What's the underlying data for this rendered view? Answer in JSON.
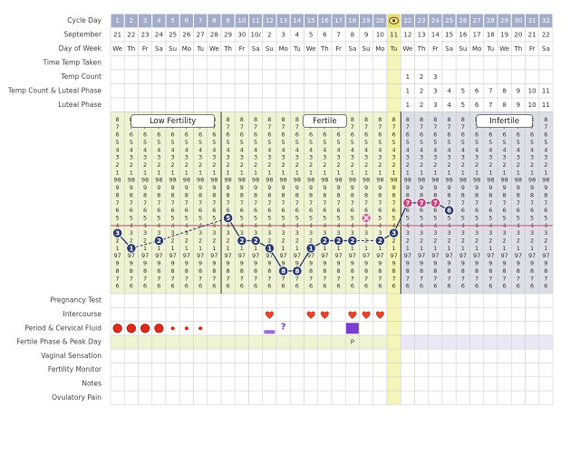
{
  "table": {
    "row_labels_top": [
      "Cycle Day",
      "September",
      "Day of Week",
      "Time Temp Taken",
      "Temp Count",
      "Temp Count & Luteal Phase",
      "Luteal Phase"
    ],
    "row_labels_bottom": [
      "Pregnancy Test",
      "Intercourse",
      "Period & Cervical Fluid",
      "Fertile Phase & Peak Day",
      "Vaginal Sensation",
      "Fertility Monitor",
      "Notes",
      "Ovulatory Pain"
    ],
    "dates": [
      21,
      22,
      23,
      24,
      25,
      26,
      27,
      28,
      29,
      30,
      "10/",
      2,
      3,
      4,
      5,
      6,
      7,
      8,
      9,
      10,
      11,
      12,
      13,
      14,
      15,
      16,
      17,
      18,
      19,
      20,
      21,
      22
    ],
    "weekdays": [
      "We",
      "Th",
      "Fr",
      "Sa",
      "Su",
      "Mo",
      "Tu",
      "We",
      "Th",
      "Fr",
      "Sa",
      "Su",
      "Mo",
      "Tu",
      "We",
      "Th",
      "Fr",
      "Sa",
      "Su",
      "Mo",
      "Tu",
      "We",
      "Th",
      "Fr",
      "Sa",
      "Su",
      "Mo",
      "Tu",
      "We",
      "Th",
      "Fr",
      "Sa"
    ],
    "temp_count": [
      null,
      null,
      null,
      null,
      null,
      null,
      null,
      null,
      null,
      null,
      null,
      null,
      null,
      null,
      null,
      null,
      null,
      null,
      null,
      null,
      null,
      1,
      2,
      3,
      null,
      null,
      null,
      null,
      null,
      null,
      null,
      null
    ],
    "temp_count_luteal": [
      null,
      null,
      null,
      null,
      null,
      null,
      null,
      null,
      null,
      null,
      null,
      null,
      null,
      null,
      null,
      null,
      null,
      null,
      null,
      null,
      null,
      1,
      2,
      3,
      4,
      5,
      6,
      7,
      8,
      9,
      10,
      11
    ],
    "luteal_phase": [
      null,
      null,
      null,
      null,
      null,
      null,
      null,
      null,
      null,
      null,
      null,
      null,
      null,
      null,
      null,
      null,
      null,
      null,
      null,
      null,
      null,
      1,
      2,
      3,
      4,
      5,
      6,
      7,
      8,
      9,
      10,
      11
    ],
    "peak_label": "P",
    "fluid_note": "?"
  },
  "chart_data": {
    "type": "line",
    "categories": [
      1,
      2,
      3,
      4,
      5,
      6,
      7,
      8,
      9,
      10,
      11,
      12,
      13,
      14,
      15,
      16,
      17,
      18,
      19,
      20,
      null,
      22,
      23,
      24,
      25,
      26,
      27,
      28,
      29,
      30,
      31,
      32
    ],
    "values": [
      97.3,
      97.1,
      null,
      97.2,
      null,
      null,
      null,
      null,
      97.5,
      97.2,
      97.2,
      97.1,
      96.8,
      96.8,
      97.1,
      97.2,
      97.2,
      97.2,
      null,
      97.2,
      97.3,
      97.7,
      97.7,
      97.7,
      97.6,
      null,
      null,
      null,
      null,
      null,
      null,
      null
    ],
    "value_labels": [
      "3",
      "1",
      null,
      "2",
      null,
      null,
      null,
      null,
      "5",
      "2",
      "2",
      "1",
      "8",
      "8",
      "1",
      "2",
      "2",
      "2",
      null,
      "2",
      "3",
      "7",
      "7",
      "7",
      "6",
      null,
      null,
      null,
      null,
      null,
      null,
      null
    ],
    "point_colors": [
      "#2d3c6e",
      "#2d3c6e",
      null,
      "#2d3c6e",
      null,
      null,
      null,
      null,
      "#2d3c6e",
      "#2d3c6e",
      "#2d3c6e",
      "#2d3c6e",
      "#2d3c6e",
      "#2d3c6e",
      "#2d3c6e",
      "#2d3c6e",
      "#2d3c6e",
      "#2d3c6e",
      null,
      "#2d3c6e",
      "#2d3c6e",
      "#c2457c",
      "#c2457c",
      "#c2457c",
      "#2d3c6e",
      null,
      null,
      null,
      null,
      null,
      null,
      null
    ],
    "excluded_values": [
      null,
      null,
      null,
      null,
      null,
      null,
      null,
      null,
      null,
      null,
      null,
      null,
      null,
      null,
      null,
      null,
      null,
      null,
      97.5,
      null,
      null,
      null,
      null,
      null,
      null,
      null,
      null,
      null,
      null,
      null,
      null,
      null
    ],
    "excluded_color": "#d06a98",
    "line_color": "#2d3c6e",
    "ylim": [
      96.5,
      98.9
    ],
    "yticks": [
      {
        "value": 98.8,
        "label": "8"
      },
      {
        "value": 98.7,
        "label": "7"
      },
      {
        "value": 98.6,
        "label": "6"
      },
      {
        "value": 98.5,
        "label": "5"
      },
      {
        "value": 98.4,
        "label": "4"
      },
      {
        "value": 98.3,
        "label": "3"
      },
      {
        "value": 98.2,
        "label": "2"
      },
      {
        "value": 98.1,
        "label": "1"
      },
      98,
      {
        "value": 97.9,
        "label": "9"
      },
      {
        "value": 97.8,
        "label": "8"
      },
      {
        "value": 97.7,
        "label": "7"
      },
      {
        "value": 97.6,
        "label": "6"
      },
      {
        "value": 97.5,
        "label": "5"
      },
      {
        "value": 97.4,
        "label": "4"
      },
      {
        "value": 97.3,
        "label": "3"
      },
      {
        "value": 97.2,
        "label": "2"
      },
      {
        "value": 97.1,
        "label": "1"
      },
      97,
      {
        "value": 96.9,
        "label": "9"
      },
      {
        "value": 96.8,
        "label": "8"
      },
      {
        "value": 96.7,
        "label": "7"
      },
      {
        "value": 96.6,
        "label": "6"
      }
    ],
    "coverline": 97.4,
    "coverline_color": "#e07a98",
    "phase_labels": [
      "Low Fertility",
      "Fertile",
      "Infertile"
    ]
  }
}
